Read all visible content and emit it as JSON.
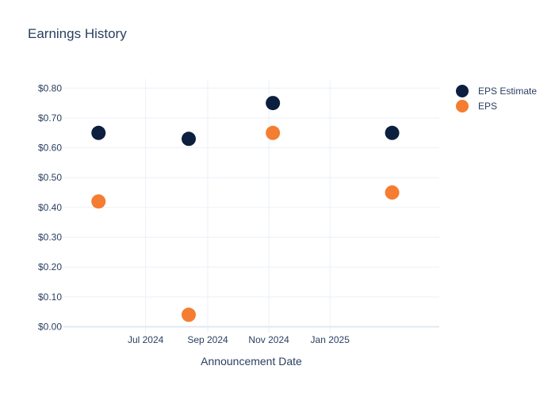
{
  "chart_data": {
    "type": "scatter",
    "title": "Earnings History",
    "xlabel": "Announcement Date",
    "ylabel": "",
    "ylim": [
      -0.02,
      0.83
    ],
    "xlim": [
      "2024-04-10",
      "2025-04-20"
    ],
    "y_ticks": [
      0.0,
      0.1,
      0.2,
      0.3,
      0.4,
      0.5,
      0.6,
      0.7,
      0.8
    ],
    "y_tick_labels": [
      "$0.00",
      "$0.10",
      "$0.20",
      "$0.30",
      "$0.40",
      "$0.50",
      "$0.60",
      "$0.70",
      "$0.80"
    ],
    "x_ticks": [
      "2024-07-01",
      "2024-09-01",
      "2024-11-01",
      "2025-01-01"
    ],
    "x_tick_labels": [
      "Jul 2024",
      "Sep 2024",
      "Nov 2024",
      "Jan 2025"
    ],
    "grid": true,
    "legend_position": "top-right",
    "series": [
      {
        "name": "EPS Estimate",
        "color": "#0d1f3f",
        "points": [
          {
            "x": "2024-05-15",
            "y": 0.65
          },
          {
            "x": "2024-08-13",
            "y": 0.63
          },
          {
            "x": "2024-11-05",
            "y": 0.75
          },
          {
            "x": "2025-03-04",
            "y": 0.65
          }
        ]
      },
      {
        "name": "EPS",
        "color": "#f47d31",
        "points": [
          {
            "x": "2024-05-15",
            "y": 0.42
          },
          {
            "x": "2024-08-13",
            "y": 0.04
          },
          {
            "x": "2024-11-05",
            "y": 0.65
          },
          {
            "x": "2025-03-04",
            "y": 0.45
          }
        ]
      }
    ]
  }
}
